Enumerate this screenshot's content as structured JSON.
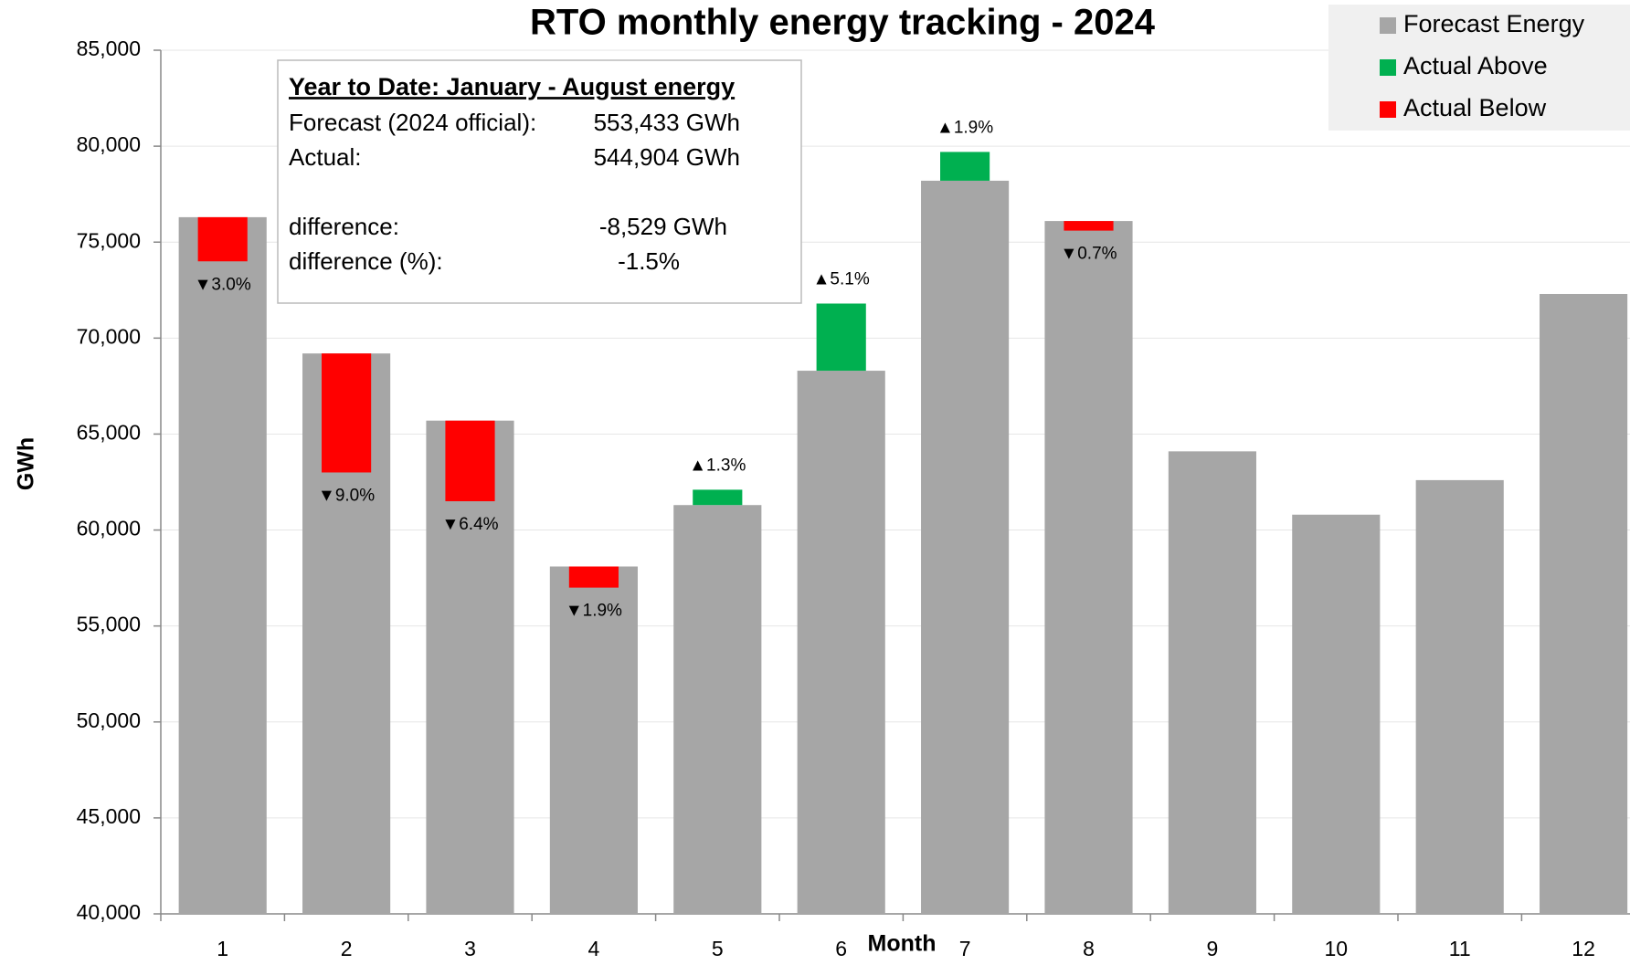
{
  "chart_data": {
    "type": "bar",
    "title": "RTO monthly energy tracking - 2024",
    "xlabel": "Month",
    "ylabel": "GWh",
    "categories": [
      "1",
      "2",
      "3",
      "4",
      "5",
      "6",
      "7",
      "8",
      "9",
      "10",
      "11",
      "12"
    ],
    "series": [
      {
        "name": "Forecast Energy",
        "color": "#a6a6a6",
        "values": [
          76300,
          69200,
          65700,
          58100,
          61300,
          68300,
          78200,
          76100,
          64100,
          60800,
          62600,
          72300
        ]
      },
      {
        "name": "Actual Above",
        "color": "#00b050",
        "values": [
          null,
          null,
          null,
          null,
          62100,
          71800,
          79700,
          null,
          null,
          null,
          null,
          null
        ],
        "pct": [
          null,
          null,
          null,
          null,
          1.3,
          5.1,
          1.9,
          null,
          null,
          null,
          null,
          null
        ],
        "pct_labels": [
          null,
          null,
          null,
          null,
          "▲1.3%",
          "▲5.1%",
          "▲1.9%",
          null,
          null,
          null,
          null,
          null
        ]
      },
      {
        "name": "Actual Below",
        "color": "#ff0000",
        "values": [
          74000,
          63000,
          61500,
          57000,
          null,
          null,
          null,
          75600,
          null,
          null,
          null,
          null
        ],
        "pct": [
          -3.0,
          -9.0,
          -6.4,
          -1.9,
          null,
          null,
          null,
          -0.7,
          null,
          null,
          null,
          null
        ],
        "pct_labels": [
          "▼3.0%",
          "▼9.0%",
          "▼6.4%",
          "▼1.9%",
          null,
          null,
          null,
          "▼0.7%",
          null,
          null,
          null,
          null
        ]
      }
    ],
    "ylim": [
      40000,
      85000
    ],
    "yticks": [
      {
        "value": 40000,
        "label": "40,000"
      },
      {
        "value": 45000,
        "label": "45,000"
      },
      {
        "value": 50000,
        "label": "50,000"
      },
      {
        "value": 55000,
        "label": "55,000"
      },
      {
        "value": 60000,
        "label": "60,000"
      },
      {
        "value": 65000,
        "label": "65,000"
      },
      {
        "value": 70000,
        "label": "70,000"
      },
      {
        "value": 75000,
        "label": "75,000"
      },
      {
        "value": 80000,
        "label": "80,000"
      },
      {
        "value": 85000,
        "label": "85,000"
      }
    ],
    "grid": true,
    "legend": "top-right",
    "annotation_box": {
      "title": "Year to Date: January - August energy",
      "rows": [
        [
          "Forecast (2024 official):",
          "553,433 GWh"
        ],
        [
          "Actual:",
          "544,904 GWh"
        ],
        [
          "difference:",
          "-8,529 GWh"
        ],
        [
          "difference (%):",
          "-1.5%"
        ]
      ]
    }
  }
}
